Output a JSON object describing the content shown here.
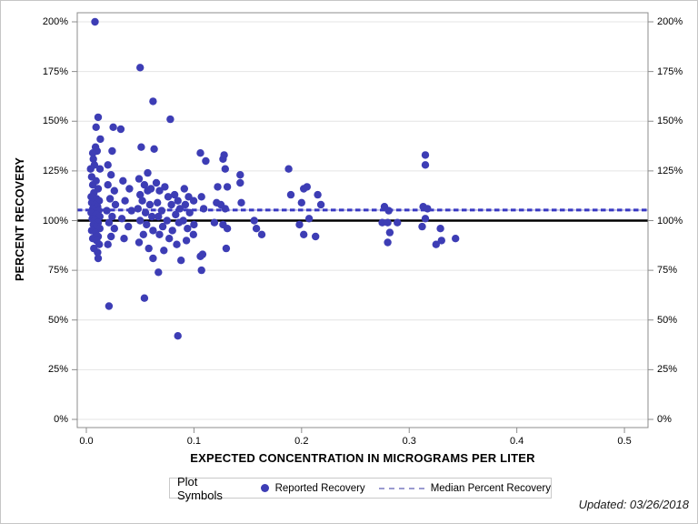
{
  "figure": {
    "updated_note": "Updated: 03/26/2018"
  },
  "legend": {
    "title": "Plot Symbols",
    "entries": [
      {
        "label": "Reported Recovery",
        "symbol": "filled-circle-icon",
        "color": "#3d3db5"
      },
      {
        "label": "Median Percent Recovery",
        "symbol": "dashed-line-icon",
        "color": "#9a9ad0"
      }
    ]
  },
  "chart_data": {
    "type": "scatter",
    "title": "",
    "xlabel": "EXPECTED CONCENTRATION IN MICROGRAMS PER LITER",
    "ylabel": "PERCENT RECOVERY",
    "grid": "horizontal",
    "legend_position": "bottom",
    "marker_color": "#3d3db5",
    "frame_color": "#8c8c8c",
    "gridline_color": "#e4e4e4",
    "xlim": [
      -0.00845,
      0.5219
    ],
    "ylim": [
      -4.12,
      204.58
    ],
    "x_ticks": {
      "values": [
        0,
        0.1,
        0.2,
        0.3,
        0.4,
        0.5
      ],
      "labels": [
        "0.0",
        "0.1",
        "0.2",
        "0.3",
        "0.4",
        "0.5"
      ]
    },
    "y_ticks": {
      "values": [
        0,
        25,
        50,
        75,
        100,
        125,
        150,
        175,
        200
      ],
      "labels": [
        "0%",
        "25%",
        "50%",
        "75%",
        "100%",
        "125%",
        "150%",
        "175%",
        "200%"
      ]
    },
    "reference_lines": [
      {
        "name": "100-percent-line",
        "y": 100,
        "style": "solid",
        "color": "#000000",
        "width": 2.5
      },
      {
        "name": "median-percent-recovery-line",
        "y": 105.3,
        "style": "dashed",
        "color": "#3838c2",
        "width": 3
      }
    ],
    "series": [
      {
        "name": "Reported Recovery",
        "points": [
          [
            0.008,
            200
          ],
          [
            0.011,
            152
          ],
          [
            0.009,
            147
          ],
          [
            0.013,
            141
          ],
          [
            0.0085,
            137
          ],
          [
            0.01,
            135
          ],
          [
            0.006,
            134
          ],
          [
            0.0065,
            131
          ],
          [
            0.0075,
            128
          ],
          [
            0.004,
            126
          ],
          [
            0.0127,
            126
          ],
          [
            0.005,
            122
          ],
          [
            0.009,
            120
          ],
          [
            0.006,
            118
          ],
          [
            0.011,
            116
          ],
          [
            0.007,
            114
          ],
          [
            0.0045,
            112
          ],
          [
            0.0095,
            111
          ],
          [
            0.012,
            110
          ],
          [
            0.005,
            109
          ],
          [
            0.008,
            108
          ],
          [
            0.0105,
            107
          ],
          [
            0.006,
            106
          ],
          [
            0.0115,
            105
          ],
          [
            0.0045,
            104
          ],
          [
            0.009,
            103
          ],
          [
            0.0125,
            102
          ],
          [
            0.0055,
            101
          ],
          [
            0.008,
            100
          ],
          [
            0.011,
            99
          ],
          [
            0.0065,
            98
          ],
          [
            0.0095,
            97
          ],
          [
            0.0125,
            96
          ],
          [
            0.005,
            95
          ],
          [
            0.0085,
            94
          ],
          [
            0.011,
            92
          ],
          [
            0.006,
            91
          ],
          [
            0.0095,
            90
          ],
          [
            0.012,
            88
          ],
          [
            0.007,
            86
          ],
          [
            0.0105,
            84
          ],
          [
            0.011,
            81
          ],
          [
            0.02,
            128
          ],
          [
            0.025,
            147
          ],
          [
            0.024,
            135
          ],
          [
            0.023,
            123
          ],
          [
            0.02,
            118
          ],
          [
            0.026,
            115
          ],
          [
            0.022,
            111
          ],
          [
            0.027,
            108
          ],
          [
            0.019,
            105
          ],
          [
            0.024,
            102
          ],
          [
            0.021,
            99
          ],
          [
            0.026,
            96
          ],
          [
            0.023,
            92
          ],
          [
            0.02,
            88
          ],
          [
            0.021,
            57
          ],
          [
            0.032,
            146
          ],
          [
            0.034,
            120
          ],
          [
            0.04,
            116
          ],
          [
            0.036,
            110
          ],
          [
            0.042,
            105
          ],
          [
            0.033,
            101
          ],
          [
            0.039,
            97
          ],
          [
            0.035,
            91
          ],
          [
            0.05,
            177
          ],
          [
            0.051,
            137
          ],
          [
            0.057,
            124
          ],
          [
            0.049,
            121
          ],
          [
            0.054,
            118
          ],
          [
            0.06,
            116
          ],
          [
            0.057,
            115
          ],
          [
            0.05,
            113
          ],
          [
            0.052,
            110
          ],
          [
            0.059,
            108
          ],
          [
            0.048,
            106
          ],
          [
            0.055,
            104
          ],
          [
            0.061,
            102
          ],
          [
            0.05,
            100
          ],
          [
            0.056,
            98
          ],
          [
            0.062,
            95
          ],
          [
            0.053,
            93
          ],
          [
            0.049,
            89
          ],
          [
            0.058,
            86
          ],
          [
            0.062,
            81
          ],
          [
            0.054,
            61
          ],
          [
            0.062,
            160
          ],
          [
            0.063,
            136
          ],
          [
            0.078,
            151
          ],
          [
            0.065,
            119
          ],
          [
            0.073,
            117
          ],
          [
            0.068,
            115
          ],
          [
            0.082,
            113
          ],
          [
            0.076,
            112
          ],
          [
            0.085,
            110
          ],
          [
            0.066,
            109
          ],
          [
            0.079,
            108
          ],
          [
            0.087,
            106
          ],
          [
            0.07,
            105
          ],
          [
            0.083,
            103
          ],
          [
            0.067,
            102
          ],
          [
            0.075,
            100
          ],
          [
            0.086,
            99
          ],
          [
            0.071,
            97
          ],
          [
            0.08,
            95
          ],
          [
            0.068,
            93
          ],
          [
            0.077,
            91
          ],
          [
            0.084,
            88
          ],
          [
            0.072,
            85
          ],
          [
            0.067,
            74
          ],
          [
            0.085,
            42
          ],
          [
            0.088,
            80
          ],
          [
            0.091,
            116
          ],
          [
            0.095,
            112
          ],
          [
            0.092,
            108
          ],
          [
            0.096,
            104
          ],
          [
            0.09,
            100
          ],
          [
            0.094,
            96
          ],
          [
            0.093,
            90
          ],
          [
            0.0997,
            110
          ],
          [
            0.1,
            98
          ],
          [
            0.0995,
            93
          ],
          [
            0.106,
            134
          ],
          [
            0.107,
            112
          ],
          [
            0.108,
            83
          ],
          [
            0.107,
            75
          ],
          [
            0.109,
            106
          ],
          [
            0.106,
            82
          ],
          [
            0.111,
            130
          ],
          [
            0.119,
            99
          ],
          [
            0.121,
            109
          ],
          [
            0.122,
            117
          ],
          [
            0.125,
            108
          ],
          [
            0.127,
            98
          ],
          [
            0.127,
            131
          ],
          [
            0.128,
            133
          ],
          [
            0.129,
            126
          ],
          [
            0.129,
            106
          ],
          [
            0.13,
            86
          ],
          [
            0.131,
            117
          ],
          [
            0.131,
            96
          ],
          [
            0.143,
            123
          ],
          [
            0.143,
            119
          ],
          [
            0.144,
            109
          ],
          [
            0.156,
            100
          ],
          [
            0.158,
            96
          ],
          [
            0.163,
            93
          ],
          [
            0.188,
            126
          ],
          [
            0.19,
            113
          ],
          [
            0.198,
            98
          ],
          [
            0.2,
            109
          ],
          [
            0.202,
            116
          ],
          [
            0.202,
            93
          ],
          [
            0.205,
            117
          ],
          [
            0.207,
            101
          ],
          [
            0.213,
            92
          ],
          [
            0.215,
            113
          ],
          [
            0.218,
            108
          ],
          [
            0.275,
            99
          ],
          [
            0.277,
            107
          ],
          [
            0.28,
            99
          ],
          [
            0.28,
            89
          ],
          [
            0.281,
            105
          ],
          [
            0.282,
            94
          ],
          [
            0.289,
            99
          ],
          [
            0.312,
            97
          ],
          [
            0.313,
            107
          ],
          [
            0.315,
            133
          ],
          [
            0.315,
            128
          ],
          [
            0.315,
            101
          ],
          [
            0.317,
            106
          ],
          [
            0.325,
            88
          ],
          [
            0.329,
            96
          ],
          [
            0.33,
            90
          ],
          [
            0.343,
            91
          ]
        ]
      }
    ]
  }
}
